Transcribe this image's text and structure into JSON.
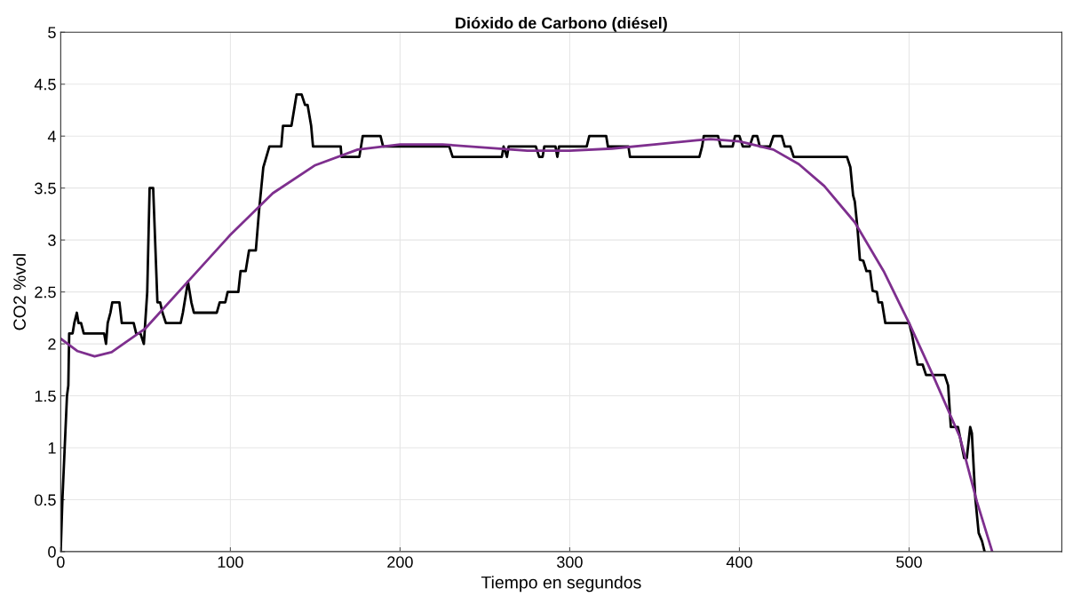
{
  "chart_data": {
    "type": "line",
    "title": "Dióxido de Carbono (diésel)",
    "xlabel": "Tiempo en segundos",
    "ylabel": "CO2 %vol",
    "xlim": [
      0,
      590
    ],
    "xticks": [
      0,
      100,
      200,
      300,
      400,
      500
    ],
    "ylim": [
      0,
      5
    ],
    "yticks": [
      0,
      0.5,
      1,
      1.5,
      2,
      2.5,
      3,
      3.5,
      4,
      4.5,
      5
    ],
    "grid": true,
    "line_style": "solid",
    "series": [
      {
        "color": "#000000",
        "x": [
          0,
          1,
          3.7,
          4.5,
          5,
          7,
          8,
          9.5,
          10.5,
          12,
          13.6,
          25.6,
          26.7,
          27.7,
          29.3,
          30.4,
          34.6,
          36,
          43,
          44.5,
          47,
          49,
          51,
          52.4,
          54.5,
          57,
          58.6,
          60,
          62,
          70.7,
          72,
          75,
          77,
          78.5,
          92,
          93.7,
          97,
          98.4,
          104.7,
          106,
          109,
          111,
          115,
          117,
          119.4,
          123,
          130,
          131,
          136,
          139,
          142,
          144,
          145.5,
          147.6,
          148.7,
          165,
          165.5,
          176,
          178,
          188.5,
          190,
          229,
          231,
          260,
          261,
          263,
          264,
          280,
          282,
          284,
          285,
          291.6,
          292.7,
          293.7,
          310,
          311.5,
          321.5,
          322.5,
          334.6,
          335.5,
          376.4,
          378,
          379,
          387.4,
          389,
          396,
          397.4,
          400,
          402,
          406,
          408,
          410.5,
          412,
          418,
          420,
          425,
          426.7,
          430,
          432,
          463.4,
          465.4,
          467,
          468,
          469.6,
          471,
          473,
          474.9,
          477,
          478.5,
          481,
          482,
          484,
          486,
          500,
          501.6,
          503.7,
          505,
          508,
          510,
          521,
          523,
          524.6,
          528.8,
          532.5,
          534,
          536,
          537,
          539,
          541,
          543,
          544.5
        ],
        "values": [
          0,
          0.5,
          1.5,
          1.6,
          2.1,
          2.1,
          2.2,
          2.3,
          2.2,
          2.2,
          2.1,
          2.1,
          2.0,
          2.2,
          2.3,
          2.4,
          2.4,
          2.2,
          2.2,
          2.1,
          2.1,
          2.0,
          2.5,
          3.5,
          3.5,
          2.4,
          2.4,
          2.3,
          2.2,
          2.2,
          2.3,
          2.6,
          2.4,
          2.3,
          2.3,
          2.4,
          2.4,
          2.5,
          2.5,
          2.7,
          2.7,
          2.9,
          2.9,
          3.3,
          3.7,
          3.9,
          3.9,
          4.1,
          4.1,
          4.4,
          4.4,
          4.3,
          4.3,
          4.1,
          3.9,
          3.9,
          3.8,
          3.8,
          4.0,
          4.0,
          3.9,
          3.9,
          3.8,
          3.8,
          3.9,
          3.8,
          3.9,
          3.9,
          3.8,
          3.8,
          3.9,
          3.9,
          3.8,
          3.9,
          3.9,
          4.0,
          4.0,
          3.9,
          3.9,
          3.8,
          3.8,
          3.9,
          4.0,
          4.0,
          3.9,
          3.9,
          4.0,
          4.0,
          3.9,
          3.9,
          4.0,
          4.0,
          3.9,
          3.9,
          4.0,
          4.0,
          3.9,
          3.9,
          3.8,
          3.8,
          3.7,
          3.43,
          3.37,
          3.11,
          2.81,
          2.8,
          2.7,
          2.7,
          2.51,
          2.5,
          2.4,
          2.4,
          2.2,
          2.2,
          2.1,
          1.91,
          1.8,
          1.8,
          1.7,
          1.7,
          1.6,
          1.2,
          1.2,
          0.9,
          0.9,
          1.2,
          1.14,
          0.52,
          0.18,
          0.1,
          0
        ]
      },
      {
        "color": "#7e2f8e",
        "x": [
          0,
          10,
          20,
          30,
          50,
          75,
          100,
          125,
          150,
          175,
          200,
          225,
          250,
          275,
          300,
          325,
          350,
          375,
          383,
          400,
          420,
          435,
          450,
          468,
          485,
          500,
          514,
          530,
          540,
          549
        ],
        "values": [
          2.05,
          1.93,
          1.88,
          1.92,
          2.15,
          2.6,
          3.05,
          3.45,
          3.72,
          3.87,
          3.92,
          3.92,
          3.89,
          3.86,
          3.86,
          3.88,
          3.92,
          3.96,
          3.97,
          3.95,
          3.87,
          3.73,
          3.52,
          3.17,
          2.7,
          2.2,
          1.7,
          1.1,
          0.48,
          0
        ]
      }
    ]
  }
}
